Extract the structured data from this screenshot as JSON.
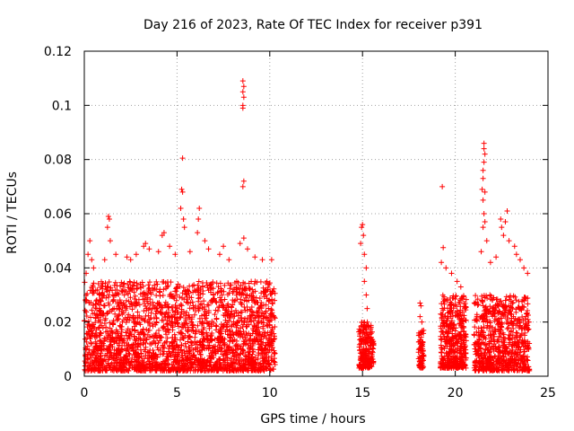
{
  "chart_data": {
    "type": "scatter",
    "title": "Day 216 of 2023, Rate Of TEC Index for receiver p391",
    "xlabel": "GPS time / hours",
    "ylabel": "ROTI / TECUs",
    "xlim": [
      0,
      25
    ],
    "ylim": [
      0,
      0.12
    ],
    "xticks": [
      0,
      5,
      10,
      15,
      20,
      25
    ],
    "xtick_labels": [
      "0",
      "5",
      "10",
      "15",
      "20",
      "25"
    ],
    "yticks": [
      0,
      0.02,
      0.04,
      0.06,
      0.08,
      0.1,
      0.12
    ],
    "ytick_labels": [
      "0",
      "0.02",
      "0.04",
      "0.06",
      "0.08",
      "0.1",
      "0.12"
    ],
    "grid": true,
    "marker": "+",
    "marker_color": "#ff0000",
    "series": [
      {
        "name": "ROTI",
        "segments": [
          {
            "x_range": [
              0.0,
              10.3
            ],
            "y_range": [
              0.002,
              0.035
            ],
            "density": 2400
          },
          {
            "x_range": [
              14.8,
              15.6
            ],
            "y_range": [
              0.003,
              0.02
            ],
            "density": 220
          },
          {
            "x_range": [
              18.0,
              18.3
            ],
            "y_range": [
              0.003,
              0.017
            ],
            "density": 70
          },
          {
            "x_range": [
              19.2,
              20.6
            ],
            "y_range": [
              0.003,
              0.03
            ],
            "density": 420
          },
          {
            "x_range": [
              21.0,
              24.0
            ],
            "y_range": [
              0.002,
              0.03
            ],
            "density": 720
          }
        ],
        "points": [
          {
            "x": 8.55,
            "y": 0.109
          },
          {
            "x": 8.6,
            "y": 0.107
          },
          {
            "x": 8.55,
            "y": 0.105
          },
          {
            "x": 8.6,
            "y": 0.103
          },
          {
            "x": 8.55,
            "y": 0.1
          },
          {
            "x": 8.55,
            "y": 0.099
          },
          {
            "x": 8.6,
            "y": 0.072
          },
          {
            "x": 8.55,
            "y": 0.07
          },
          {
            "x": 5.3,
            "y": 0.0805
          },
          {
            "x": 5.25,
            "y": 0.069
          },
          {
            "x": 5.3,
            "y": 0.068
          },
          {
            "x": 5.2,
            "y": 0.062
          },
          {
            "x": 5.35,
            "y": 0.058
          },
          {
            "x": 5.4,
            "y": 0.055
          },
          {
            "x": 6.2,
            "y": 0.062
          },
          {
            "x": 6.15,
            "y": 0.058
          },
          {
            "x": 6.1,
            "y": 0.053
          },
          {
            "x": 6.5,
            "y": 0.05
          },
          {
            "x": 6.7,
            "y": 0.047
          },
          {
            "x": 1.3,
            "y": 0.059
          },
          {
            "x": 1.35,
            "y": 0.058
          },
          {
            "x": 1.25,
            "y": 0.055
          },
          {
            "x": 1.4,
            "y": 0.05
          },
          {
            "x": 1.7,
            "y": 0.045
          },
          {
            "x": 1.1,
            "y": 0.043
          },
          {
            "x": 0.3,
            "y": 0.05
          },
          {
            "x": 0.2,
            "y": 0.045
          },
          {
            "x": 0.4,
            "y": 0.043
          },
          {
            "x": 0.5,
            "y": 0.04
          },
          {
            "x": 0.1,
            "y": 0.038
          },
          {
            "x": 2.3,
            "y": 0.044
          },
          {
            "x": 2.5,
            "y": 0.043
          },
          {
            "x": 3.2,
            "y": 0.048
          },
          {
            "x": 3.3,
            "y": 0.049
          },
          {
            "x": 3.5,
            "y": 0.047
          },
          {
            "x": 2.8,
            "y": 0.045
          },
          {
            "x": 4.2,
            "y": 0.052
          },
          {
            "x": 4.3,
            "y": 0.053
          },
          {
            "x": 4.0,
            "y": 0.046
          },
          {
            "x": 4.6,
            "y": 0.048
          },
          {
            "x": 4.9,
            "y": 0.045
          },
          {
            "x": 5.7,
            "y": 0.046
          },
          {
            "x": 7.5,
            "y": 0.048
          },
          {
            "x": 7.3,
            "y": 0.045
          },
          {
            "x": 7.8,
            "y": 0.043
          },
          {
            "x": 8.4,
            "y": 0.049
          },
          {
            "x": 8.6,
            "y": 0.051
          },
          {
            "x": 8.8,
            "y": 0.047
          },
          {
            "x": 9.2,
            "y": 0.044
          },
          {
            "x": 9.6,
            "y": 0.043
          },
          {
            "x": 10.1,
            "y": 0.043
          },
          {
            "x": 15.0,
            "y": 0.056
          },
          {
            "x": 14.95,
            "y": 0.055
          },
          {
            "x": 15.05,
            "y": 0.052
          },
          {
            "x": 14.9,
            "y": 0.049
          },
          {
            "x": 15.1,
            "y": 0.045
          },
          {
            "x": 15.2,
            "y": 0.04
          },
          {
            "x": 15.1,
            "y": 0.035
          },
          {
            "x": 15.2,
            "y": 0.03
          },
          {
            "x": 15.25,
            "y": 0.025
          },
          {
            "x": 18.1,
            "y": 0.027
          },
          {
            "x": 18.15,
            "y": 0.026
          },
          {
            "x": 18.1,
            "y": 0.022
          },
          {
            "x": 18.2,
            "y": 0.02
          },
          {
            "x": 19.3,
            "y": 0.07
          },
          {
            "x": 19.35,
            "y": 0.0475
          },
          {
            "x": 19.25,
            "y": 0.042
          },
          {
            "x": 19.5,
            "y": 0.04
          },
          {
            "x": 19.8,
            "y": 0.038
          },
          {
            "x": 20.1,
            "y": 0.035
          },
          {
            "x": 20.3,
            "y": 0.033
          },
          {
            "x": 21.55,
            "y": 0.086
          },
          {
            "x": 21.55,
            "y": 0.084
          },
          {
            "x": 21.6,
            "y": 0.082
          },
          {
            "x": 21.55,
            "y": 0.079
          },
          {
            "x": 21.5,
            "y": 0.076
          },
          {
            "x": 21.5,
            "y": 0.073
          },
          {
            "x": 21.45,
            "y": 0.069
          },
          {
            "x": 21.6,
            "y": 0.068
          },
          {
            "x": 21.5,
            "y": 0.065
          },
          {
            "x": 21.55,
            "y": 0.06
          },
          {
            "x": 21.6,
            "y": 0.057
          },
          {
            "x": 21.5,
            "y": 0.055
          },
          {
            "x": 21.7,
            "y": 0.05
          },
          {
            "x": 21.4,
            "y": 0.046
          },
          {
            "x": 22.5,
            "y": 0.055
          },
          {
            "x": 22.45,
            "y": 0.058
          },
          {
            "x": 22.6,
            "y": 0.052
          },
          {
            "x": 22.8,
            "y": 0.061
          },
          {
            "x": 22.7,
            "y": 0.057
          },
          {
            "x": 22.9,
            "y": 0.05
          },
          {
            "x": 23.2,
            "y": 0.048
          },
          {
            "x": 23.3,
            "y": 0.045
          },
          {
            "x": 23.5,
            "y": 0.043
          },
          {
            "x": 23.7,
            "y": 0.04
          },
          {
            "x": 23.9,
            "y": 0.038
          },
          {
            "x": 22.2,
            "y": 0.044
          },
          {
            "x": 21.9,
            "y": 0.042
          }
        ]
      }
    ]
  }
}
